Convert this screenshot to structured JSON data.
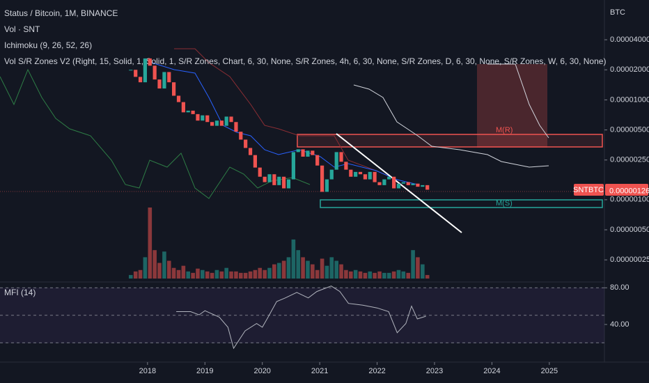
{
  "chart_data": [
    {
      "type": "candlestick",
      "title": "Status / Bitcoin, 1M, BINANCE",
      "symbol": "SNTBTC",
      "currency": "BTC",
      "indicators": [
        "Ichimoku (9, 26, 52, 26)",
        "Vol S/R Zones V2 (Right, 15, Solid, 1, Solid, 1, S/R Zones, Chart, 6, 30, None, S/R Zones, 4h, 6, 30, None, S/R Zones, D, 6, 30, None, S/R Zones, W, 6, 30, None)"
      ],
      "zones": [
        "M(R)",
        "M(S)"
      ],
      "last_price": {
        "value": 1.26e-06,
        "label": "0.00000126"
      },
      "log_scale": true,
      "up_color": "#26a69a",
      "down_color": "#ef5350",
      "xlim": [
        2015.43,
        2025.96
      ],
      "xticks": [
        2018,
        2019,
        2020,
        2021,
        2022,
        2023,
        2024,
        2025
      ],
      "ylim": [
        1.5e-07,
        0.0001
      ],
      "yticks": [
        {
          "value": 4e-05,
          "label": "0.00004000"
        },
        {
          "value": 2e-05,
          "label": "0.00002000"
        },
        {
          "value": 1e-05,
          "label": "0.00001000"
        },
        {
          "value": 5e-06,
          "label": "0.00000500"
        },
        {
          "value": 2.5e-06,
          "label": "0.00000250"
        },
        {
          "value": 1e-06,
          "label": "0.00000100"
        },
        {
          "value": 5e-07,
          "label": "0.00000050"
        },
        {
          "value": 2.5e-07,
          "label": "0.00000025"
        }
      ],
      "x": [
        2017.708,
        2017.792,
        2017.875,
        2017.958,
        2018.042,
        2018.125,
        2018.208,
        2018.292,
        2018.375,
        2018.458,
        2018.542,
        2018.625,
        2018.708,
        2018.792,
        2018.875,
        2018.958,
        2019.042,
        2019.125,
        2019.208,
        2019.292,
        2019.375,
        2019.458,
        2019.542,
        2019.625,
        2019.708,
        2019.792,
        2019.875,
        2019.958,
        2020.042,
        2020.125,
        2020.208,
        2020.292,
        2020.375,
        2020.458,
        2020.542,
        2020.625,
        2020.708,
        2020.792,
        2020.875,
        2020.958,
        2021.042,
        2021.125,
        2021.208,
        2021.292,
        2021.375,
        2021.458,
        2021.542,
        2021.625,
        2021.708,
        2021.792,
        2021.875,
        2021.958,
        2022.042,
        2022.125,
        2022.208,
        2022.292,
        2022.375,
        2022.458,
        2022.542,
        2022.625,
        2022.708,
        2022.792,
        2022.875
      ],
      "values": [
        2e-05,
        1.7e-05,
        1.5e-05,
        2.6e-05,
        2.2e-05,
        1.6e-05,
        1.3e-05,
        1.9e-05,
        1.5e-05,
        1.1e-05,
        9.5e-06,
        7.5e-06,
        7.8e-06,
        7.2e-06,
        6.2e-06,
        7e-06,
        6e-06,
        5.5e-06,
        6.2e-06,
        5.5e-06,
        6.8e-06,
        6e-06,
        4.8e-06,
        4e-06,
        3.3e-06,
        2.8e-06,
        2.1e-06,
        1.7e-06,
        1.5e-06,
        1.8e-06,
        1.4e-06,
        1.7e-06,
        1.3e-06,
        1.6e-06,
        3e-06,
        3.2e-06,
        2.7e-06,
        3.1e-06,
        2.8e-06,
        2.2e-06,
        1.2e-06,
        1.6e-06,
        2e-06,
        3e-06,
        2.4e-06,
        2e-06,
        1.7e-06,
        1.9e-06,
        1.8e-06,
        1.6e-06,
        1.9e-06,
        1.5e-06,
        1.4e-06,
        1.6e-06,
        1.7e-06,
        1.3e-06,
        1.45e-06,
        1.5e-06,
        1.4e-06,
        1.45e-06,
        1.35e-06,
        1.4e-06,
        1.26e-06
      ]
    },
    {
      "type": "bar",
      "title": "Vol · SNT",
      "ylim": [
        0,
        100
      ],
      "values": [
        5,
        10,
        12,
        30,
        100,
        40,
        22,
        38,
        25,
        15,
        12,
        18,
        10,
        8,
        14,
        12,
        10,
        8,
        12,
        10,
        15,
        10,
        10,
        8,
        8,
        10,
        12,
        15,
        12,
        15,
        20,
        22,
        25,
        30,
        55,
        40,
        30,
        25,
        20,
        12,
        28,
        18,
        30,
        25,
        20,
        12,
        10,
        12,
        10,
        8,
        10,
        8,
        10,
        8,
        8,
        10,
        12,
        10,
        8,
        40,
        30,
        20,
        5
      ]
    },
    {
      "type": "line",
      "title": "MFI (14)",
      "color": "#b2b5be",
      "band_color": "#7e57c2",
      "ylim": [
        5,
        82.5
      ],
      "levels": [
        80,
        50,
        20
      ],
      "yticks": [
        {
          "value": 80,
          "label": "80.00"
        },
        {
          "value": 40,
          "label": "40.00"
        }
      ],
      "x": [
        2018.5,
        2018.75,
        2018.9,
        2019.0,
        2019.25,
        2019.4,
        2019.5,
        2019.7,
        2019.9,
        2020.0,
        2020.1,
        2020.25,
        2020.4,
        2020.6,
        2020.8,
        2020.95,
        2021.2,
        2021.35,
        2021.5,
        2021.75,
        2022.0,
        2022.2,
        2022.35,
        2022.5,
        2022.6,
        2022.7,
        2022.85
      ],
      "values": [
        54,
        54,
        50.5,
        55,
        48,
        37,
        14,
        33,
        41,
        37,
        48,
        65,
        69,
        75,
        69,
        76,
        82,
        76,
        63,
        61,
        58,
        54,
        31,
        41,
        60,
        46,
        49
      ]
    }
  ]
}
